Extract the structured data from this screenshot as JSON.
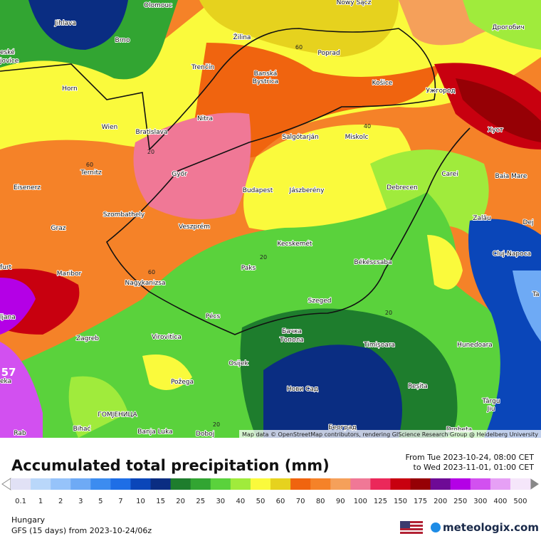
{
  "map": {
    "cities": [
      "Olomouc",
      "Nowy Sącz",
      "Jihlava",
      "Дрогобич",
      "Žilina",
      "Brno",
      "Poprad",
      "eské",
      "jovice",
      "Trenčín",
      "Banská",
      "Bystrica",
      "Košice",
      "Ужгород",
      "Horn",
      "Nitra",
      "Wien",
      "Bratislava",
      "Salgótarján",
      "Miskolc",
      "Хуст",
      "Ternitz",
      "Győr",
      "Carei",
      "Baia Mare",
      "Eisenerz",
      "Budapest",
      "Jászberény",
      "Debrecen",
      "Szombathely",
      "Zalău",
      "Graz",
      "Veszprém",
      "Dej",
      "Kecskemét",
      "Cluj-Napoca",
      "Békéscsaba",
      "Paks",
      "furt",
      "Maribor",
      "Nagykanizsa",
      "ljana",
      "Szeged",
      "Pécs",
      "Бачка",
      "Топола",
      "Virovitica",
      "Zagreb",
      "Timișoara",
      "Hunedoara",
      "Osijek",
      "Požega",
      "Нови Сад",
      "Reșita",
      "eka",
      "Târgu",
      "Jiu",
      "ГОМЈЕНИЦА",
      "Banja Luka",
      "Bihać",
      "Doboj",
      "Београд",
      "Drobeta",
      "Rab",
      "Ta"
    ],
    "contour_labels": [
      "60",
      "40",
      "20",
      "60",
      "60",
      "20",
      "20",
      "20",
      "57"
    ],
    "attribution": "Map data © OpenStreetMap contributors, rendering GIScience Research Group @ Heidelberg University"
  },
  "header": {
    "title": "Accumulated total precipitation (mm)",
    "from": "From Tue 2023-10-24, 08:00 CET",
    "to": "to Wed 2023-11-01, 01:00 CET"
  },
  "legend": {
    "items": [
      {
        "label": "0.1",
        "color": "#e1e1f5"
      },
      {
        "label": "1",
        "color": "#b9d7fa"
      },
      {
        "label": "2",
        "color": "#96c3fa"
      },
      {
        "label": "3",
        "color": "#6eaaf5"
      },
      {
        "label": "5",
        "color": "#3c8cf0"
      },
      {
        "label": "7",
        "color": "#1e6ee6"
      },
      {
        "label": "10",
        "color": "#0a46b9"
      },
      {
        "label": "15",
        "color": "#0a2d82"
      },
      {
        "label": "20",
        "color": "#1e7d2d"
      },
      {
        "label": "25",
        "color": "#32a532"
      },
      {
        "label": "30",
        "color": "#5ad23c"
      },
      {
        "label": "40",
        "color": "#a0eb3c"
      },
      {
        "label": "50",
        "color": "#fafa3c"
      },
      {
        "label": "60",
        "color": "#e6d21e"
      },
      {
        "label": "70",
        "color": "#f0640f"
      },
      {
        "label": "80",
        "color": "#f58228"
      },
      {
        "label": "90",
        "color": "#f5a05a"
      },
      {
        "label": "100",
        "color": "#f07896"
      },
      {
        "label": "125",
        "color": "#eb285a"
      },
      {
        "label": "150",
        "color": "#c8000f"
      },
      {
        "label": "175",
        "color": "#960005"
      },
      {
        "label": "200",
        "color": "#6e0a96"
      },
      {
        "label": "250",
        "color": "#b400e6"
      },
      {
        "label": "300",
        "color": "#d250f0"
      },
      {
        "label": "400",
        "color": "#e6a0f5"
      },
      {
        "label": "500",
        "color": "#f5e6fa"
      }
    ]
  },
  "footer": {
    "region": "Hungary",
    "model": "GFS (15 days) from  2023-10-24/06z",
    "brand": "meteologix.com"
  }
}
